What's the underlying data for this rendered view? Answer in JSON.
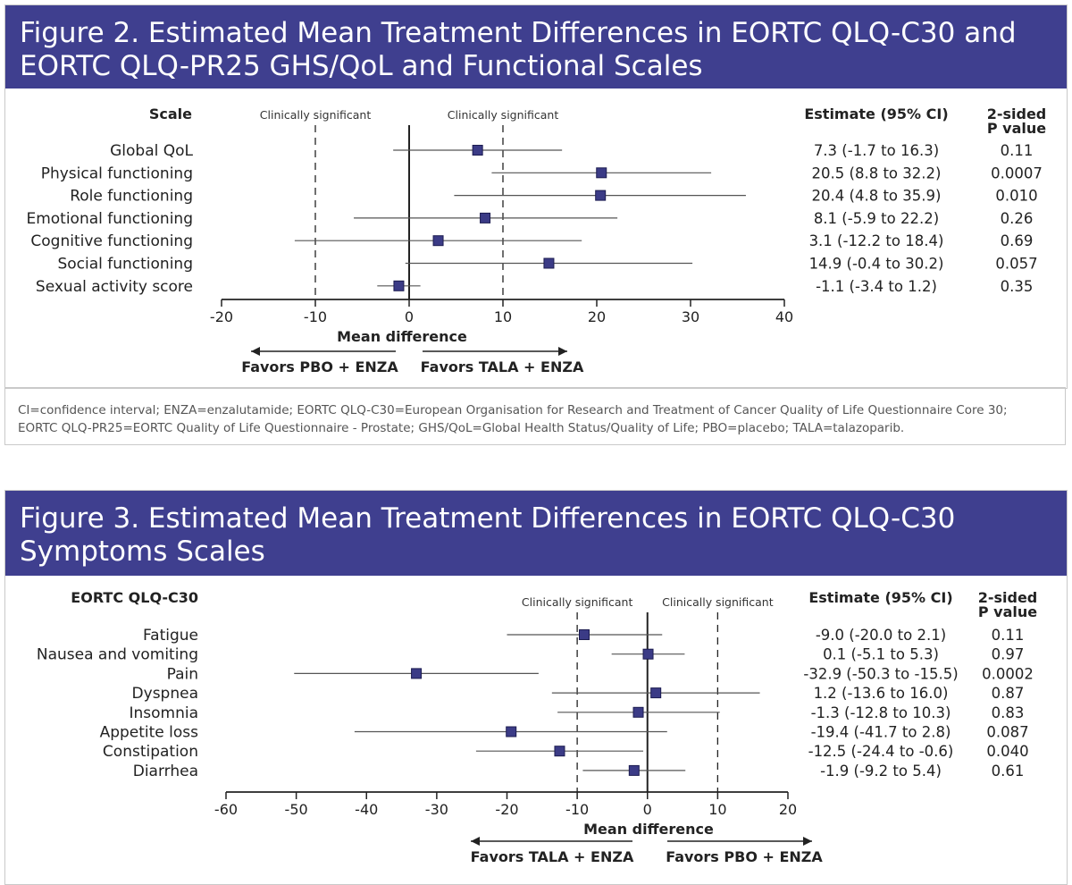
{
  "fig2": {
    "title_line1": "Figure 2. Estimated Mean Treatment Differences in EORTC QLQ-C30 and",
    "title_line2": "EORTC QLQ-PR25 GHS/QoL and Functional Scales",
    "footnote_line1": "CI=confidence interval; ENZA=enzalutamide; EORTC QLQ-C30=European Organisation for Research and Treatment of Cancer Quality of Life Questionnaire Core 30;",
    "footnote_line2": "EORTC QLQ-PR25=EORTC Quality of Life Questionnaire - Prostate; GHS/QoL=Global Health Status/Quality of Life; PBO=placebo; TALA=talazoparib."
  },
  "fig3": {
    "title_line1": "Figure 3. Estimated Mean Treatment Differences in EORTC QLQ-C30",
    "title_line2": "Symptoms Scales"
  },
  "chart_data": [
    {
      "type": "forest",
      "row_header": "Scale",
      "xlabel": "Mean difference",
      "xlim": [
        -20,
        40
      ],
      "xticks": [
        -20,
        -10,
        0,
        10,
        20,
        30,
        40
      ],
      "reference_lines": [
        -10,
        10
      ],
      "reference_label": "Clinically significant",
      "left_arrow_label": "Favors PBO + ENZA",
      "right_arrow_label": "Favors TALA + ENZA",
      "estimate_header": "Estimate (95% CI)",
      "p_header_line1": "2-sided",
      "p_header_line2": "P value",
      "rows": [
        {
          "label": "Global QoL",
          "estimate": 7.3,
          "lower": -1.7,
          "upper": 16.3,
          "ci_text": "7.3 (-1.7 to 16.3)",
          "p": "0.11"
        },
        {
          "label": "Physical functioning",
          "estimate": 20.5,
          "lower": 8.8,
          "upper": 32.2,
          "ci_text": "20.5 (8.8 to 32.2)",
          "p": "0.0007"
        },
        {
          "label": "Role functioning",
          "estimate": 20.4,
          "lower": 4.8,
          "upper": 35.9,
          "ci_text": "20.4 (4.8 to 35.9)",
          "p": "0.010"
        },
        {
          "label": "Emotional functioning",
          "estimate": 8.1,
          "lower": -5.9,
          "upper": 22.2,
          "ci_text": "8.1 (-5.9 to 22.2)",
          "p": "0.26"
        },
        {
          "label": "Cognitive functioning",
          "estimate": 3.1,
          "lower": -12.2,
          "upper": 18.4,
          "ci_text": "3.1 (-12.2 to 18.4)",
          "p": "0.69"
        },
        {
          "label": "Social functioning",
          "estimate": 14.9,
          "lower": -0.4,
          "upper": 30.2,
          "ci_text": "14.9 (-0.4 to 30.2)",
          "p": "0.057"
        },
        {
          "label": "Sexual activity score",
          "estimate": -1.1,
          "lower": -3.4,
          "upper": 1.2,
          "ci_text": "-1.1 (-3.4 to 1.2)",
          "p": "0.35"
        }
      ]
    },
    {
      "type": "forest",
      "row_header": "EORTC QLQ-C30",
      "xlabel": "Mean difference",
      "xlim": [
        -60,
        20
      ],
      "xticks": [
        -60,
        -50,
        -40,
        -30,
        -20,
        -10,
        0,
        10,
        20
      ],
      "reference_lines": [
        -10,
        10
      ],
      "reference_label": "Clinically significant",
      "left_arrow_label": "Favors TALA + ENZA",
      "right_arrow_label": "Favors PBO + ENZA",
      "estimate_header": "Estimate (95% CI)",
      "p_header_line1": "2-sided",
      "p_header_line2": "P value",
      "rows": [
        {
          "label": "Fatigue",
          "estimate": -9.0,
          "lower": -20.0,
          "upper": 2.1,
          "ci_text": "-9.0 (-20.0 to 2.1)",
          "p": "0.11"
        },
        {
          "label": "Nausea and vomiting",
          "estimate": 0.1,
          "lower": -5.1,
          "upper": 5.3,
          "ci_text": "0.1 (-5.1 to 5.3)",
          "p": "0.97"
        },
        {
          "label": "Pain",
          "estimate": -32.9,
          "lower": -50.3,
          "upper": -15.5,
          "ci_text": "-32.9 (-50.3 to -15.5)",
          "p": "0.0002"
        },
        {
          "label": "Dyspnea",
          "estimate": 1.2,
          "lower": -13.6,
          "upper": 16.0,
          "ci_text": "1.2 (-13.6 to 16.0)",
          "p": "0.87"
        },
        {
          "label": "Insomnia",
          "estimate": -1.3,
          "lower": -12.8,
          "upper": 10.3,
          "ci_text": "-1.3 (-12.8 to 10.3)",
          "p": "0.83"
        },
        {
          "label": "Appetite loss",
          "estimate": -19.4,
          "lower": -41.7,
          "upper": 2.8,
          "ci_text": "-19.4 (-41.7 to 2.8)",
          "p": "0.087"
        },
        {
          "label": "Constipation",
          "estimate": -12.5,
          "lower": -24.4,
          "upper": -0.6,
          "ci_text": "-12.5 (-24.4 to -0.6)",
          "p": "0.040"
        },
        {
          "label": "Diarrhea",
          "estimate": -1.9,
          "lower": -9.2,
          "upper": 5.4,
          "ci_text": "-1.9 (-9.2 to 5.4)",
          "p": "0.61"
        }
      ]
    }
  ],
  "colors": {
    "title_bg": "#3f3f8f",
    "marker": "#3b3b86",
    "ci_line": "#555555"
  }
}
